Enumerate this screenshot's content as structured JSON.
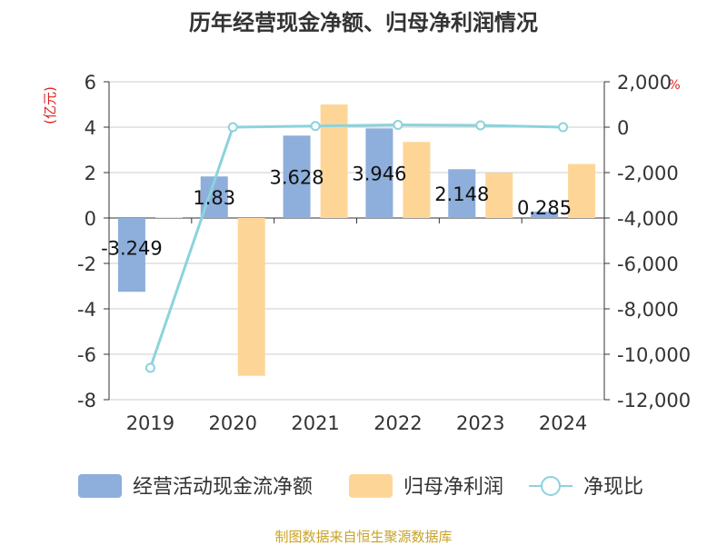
{
  "title": "历年经营现金净额、归母净利润情况",
  "left_axis_unit": "(亿元)",
  "right_axis_unit": "%",
  "source": "制图数据来自恒生聚源数据库",
  "colors": {
    "cash_flow": "#8eaedb",
    "net_profit": "#fdd697",
    "ratio": "#8bd3dd",
    "title": "#333333",
    "unit": "#e02020",
    "source": "#c9a227",
    "axis": "#333333",
    "grid": "#cccccc"
  },
  "legend": [
    {
      "label": "经营活动现金流净额",
      "icon": "bar-swatch-blue"
    },
    {
      "label": "归母净利润",
      "icon": "bar-swatch-orange"
    },
    {
      "label": "净现比",
      "icon": "line-circle-marker"
    }
  ],
  "chart_data": {
    "type": "bar",
    "categories": [
      "2019",
      "2020",
      "2021",
      "2022",
      "2023",
      "2024"
    ],
    "left_axis": {
      "min": -8,
      "max": 6,
      "step": 2,
      "ticks": [
        "-8",
        "-6",
        "-4",
        "-2",
        "0",
        "2",
        "4",
        "6"
      ]
    },
    "right_axis": {
      "min": -12000,
      "max": 2000,
      "step": 2000,
      "ticks": [
        "-12,000",
        "-10,000",
        "-8,000",
        "-6,000",
        "-4,000",
        "-2,000",
        "0",
        "2,000"
      ]
    },
    "series": [
      {
        "name": "经营活动现金流净额",
        "type": "bar",
        "axis": "left",
        "values": [
          -3.249,
          1.83,
          3.628,
          3.946,
          2.148,
          0.285
        ],
        "labels": [
          "-3.249",
          "1.83",
          "3.628",
          "3.946",
          "2.148",
          "0.285"
        ]
      },
      {
        "name": "归母净利润",
        "type": "bar",
        "axis": "left",
        "values": [
          0.03,
          -6.95,
          5.0,
          3.35,
          1.98,
          2.38
        ]
      },
      {
        "name": "净现比",
        "type": "line",
        "axis": "right",
        "values": [
          -10600,
          0,
          50,
          100,
          80,
          0
        ]
      }
    ],
    "grid": true,
    "legend_position": "bottom"
  }
}
